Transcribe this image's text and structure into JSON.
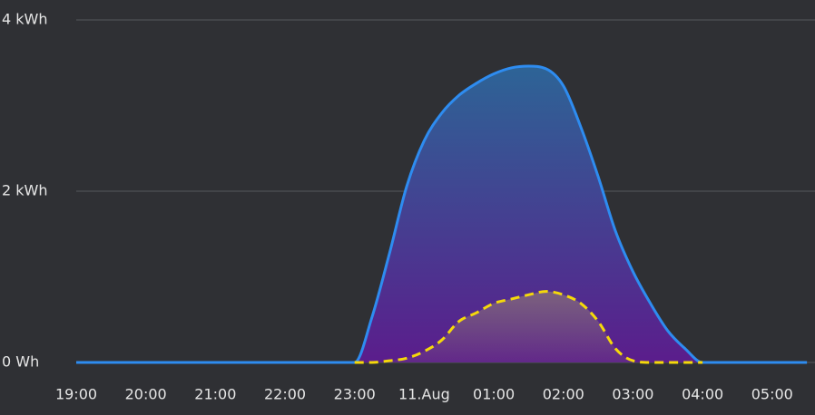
{
  "chart_data": {
    "type": "area",
    "categories": [
      "19:00",
      null,
      null,
      null,
      "20:00",
      null,
      null,
      null,
      "21:00",
      null,
      null,
      null,
      "22:00",
      null,
      null,
      null,
      "23:00",
      null,
      null,
      null,
      "11.Aug",
      null,
      null,
      null,
      "01:00",
      null,
      null,
      null,
      "02:00",
      null,
      null,
      null,
      "03:00",
      null,
      null,
      null,
      "04:00",
      null,
      null,
      null,
      "05:00",
      null,
      null
    ],
    "series": [
      {
        "color": "#2e8cf0",
        "values": [
          0,
          0,
          0,
          0,
          0,
          0,
          0,
          0,
          0,
          0,
          0,
          0,
          0,
          0,
          0,
          0,
          0,
          530,
          1270,
          2060,
          2590,
          2910,
          3120,
          3260,
          3370,
          3440,
          3460,
          3430,
          3230,
          2750,
          2170,
          1530,
          1060,
          690,
          370,
          160,
          0,
          0,
          0,
          0,
          0,
          0,
          0
        ]
      },
      {
        "color": "#f5d90a",
        "values": [
          null,
          null,
          null,
          null,
          null,
          null,
          null,
          null,
          null,
          null,
          null,
          null,
          null,
          null,
          null,
          null,
          0,
          0,
          20,
          50,
          130,
          260,
          480,
          580,
          690,
          740,
          790,
          830,
          790,
          690,
          480,
          160,
          20,
          0,
          0,
          0,
          0,
          null,
          null,
          null,
          null,
          null,
          null
        ]
      }
    ],
    "ylim": [
      0,
      4000
    ],
    "yticks": [
      {
        "value": 0,
        "label": "0 Wh"
      },
      {
        "value": 2000,
        "label": "2 kWh"
      },
      {
        "value": 4000,
        "label": "4 kWh"
      }
    ],
    "grid": true
  }
}
